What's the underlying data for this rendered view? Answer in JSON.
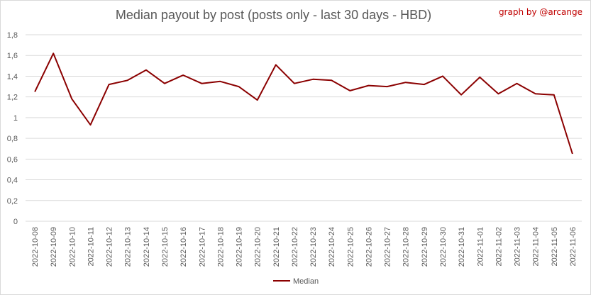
{
  "chart_data": {
    "type": "line",
    "title": "Median payout by post (posts only - last 30 days - HBD)",
    "credit": "graph by @arcange",
    "xlabel": "",
    "ylabel": "",
    "ylim": [
      0,
      1.8
    ],
    "yticks": [
      "0",
      "0,2",
      "0,4",
      "0,6",
      "0,8",
      "1",
      "1,2",
      "1,4",
      "1,6",
      "1,8"
    ],
    "ytick_values": [
      0,
      0.2,
      0.4,
      0.6,
      0.8,
      1.0,
      1.2,
      1.4,
      1.6,
      1.8
    ],
    "grid": true,
    "legend_position": "bottom",
    "categories": [
      "2022-10-08",
      "2022-10-09",
      "2022-10-10",
      "2022-10-11",
      "2022-10-12",
      "2022-10-13",
      "2022-10-14",
      "2022-10-15",
      "2022-10-16",
      "2022-10-17",
      "2022-10-18",
      "2022-10-19",
      "2022-10-20",
      "2022-10-21",
      "2022-10-22",
      "2022-10-23",
      "2022-10-24",
      "2022-10-25",
      "2022-10-26",
      "2022-10-27",
      "2022-10-28",
      "2022-10-29",
      "2022-10-30",
      "2022-10-31",
      "2022-11-01",
      "2022-11-02",
      "2022-11-03",
      "2022-11-04",
      "2022-11-05",
      "2022-11-06"
    ],
    "series": [
      {
        "name": "Median",
        "color": "#8b0000",
        "values": [
          1.25,
          1.62,
          1.18,
          0.93,
          1.32,
          1.36,
          1.46,
          1.33,
          1.41,
          1.33,
          1.35,
          1.3,
          1.17,
          1.51,
          1.33,
          1.37,
          1.36,
          1.26,
          1.31,
          1.3,
          1.34,
          1.32,
          1.4,
          1.22,
          1.39,
          1.23,
          1.33,
          1.23,
          1.22,
          0.65
        ]
      }
    ]
  }
}
